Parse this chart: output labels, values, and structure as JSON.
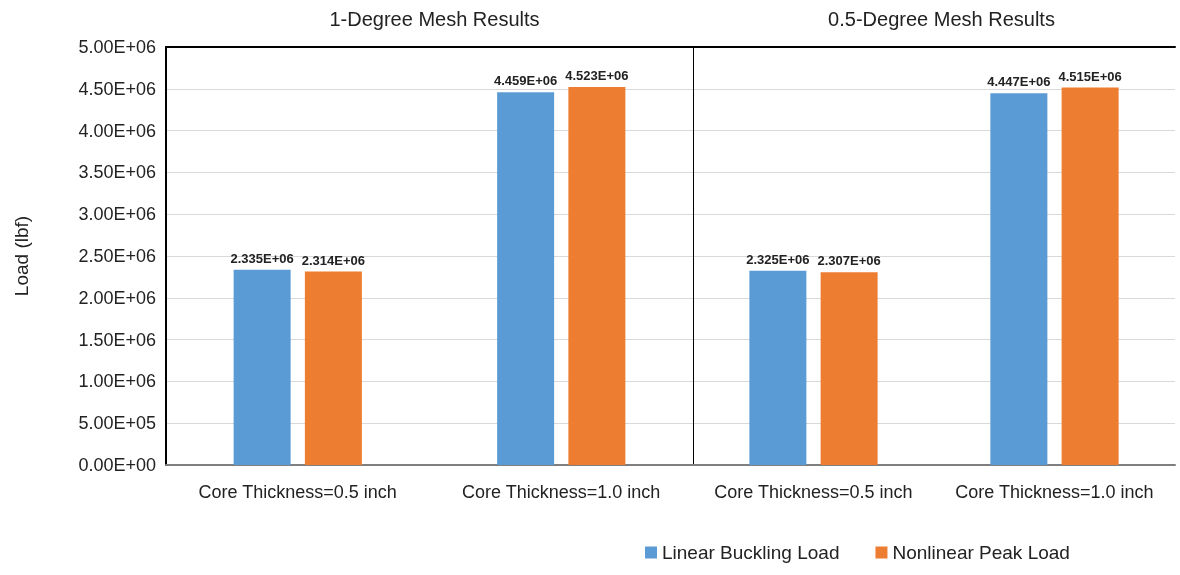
{
  "chart_data": [
    {
      "type": "bar",
      "title": "1-Degree Mesh Results",
      "ylabel": "Load (lbf)",
      "categories": [
        "Core Thickness=0.5 inch",
        "Core Thickness=1.0 inch"
      ],
      "series": [
        {
          "name": "Linear Buckling Load",
          "color": "#5b9bd5",
          "values": [
            2335000,
            4459000
          ],
          "value_labels": [
            "2.335E+06",
            "4.459E+06"
          ]
        },
        {
          "name": "Nonlinear Peak Load",
          "color": "#ed7d31",
          "values": [
            2314000,
            4523000
          ],
          "value_labels": [
            "2.314E+06",
            "4.523E+06"
          ]
        }
      ],
      "ylim": [
        0,
        5000000
      ],
      "yticks": [
        {
          "value": 0,
          "label": "0.00E+00"
        },
        {
          "value": 500000,
          "label": "5.00E+05"
        },
        {
          "value": 1000000,
          "label": "1.00E+06"
        },
        {
          "value": 1500000,
          "label": "1.50E+06"
        },
        {
          "value": 2000000,
          "label": "2.00E+06"
        },
        {
          "value": 2500000,
          "label": "2.50E+06"
        },
        {
          "value": 3000000,
          "label": "3.00E+06"
        },
        {
          "value": 3500000,
          "label": "3.50E+06"
        },
        {
          "value": 4000000,
          "label": "4.00E+06"
        },
        {
          "value": 4500000,
          "label": "4.50E+06"
        },
        {
          "value": 5000000,
          "label": "5.00E+06"
        }
      ],
      "grid": "y",
      "legend": "bottom"
    },
    {
      "type": "bar",
      "title": "0.5-Degree Mesh Results",
      "categories": [
        "Core Thickness=0.5 inch",
        "Core Thickness=1.0 inch"
      ],
      "series": [
        {
          "color": "#5b9bd5",
          "values": [
            2325000,
            4447000
          ],
          "value_labels": [
            "2.325E+06",
            "4.447E+06"
          ]
        },
        {
          "color": "#ed7d31",
          "values": [
            2307000,
            4515000
          ],
          "value_labels": [
            "2.307E+06",
            "4.515E+06"
          ]
        }
      ],
      "ylim": [
        0,
        5000000
      ],
      "yticks": [
        0,
        500000,
        1000000,
        1500000,
        2000000,
        2500000,
        3000000,
        3500000,
        4000000,
        4500000,
        5000000
      ],
      "grid": "y",
      "legend": false,
      "tick_labels": "x"
    }
  ]
}
